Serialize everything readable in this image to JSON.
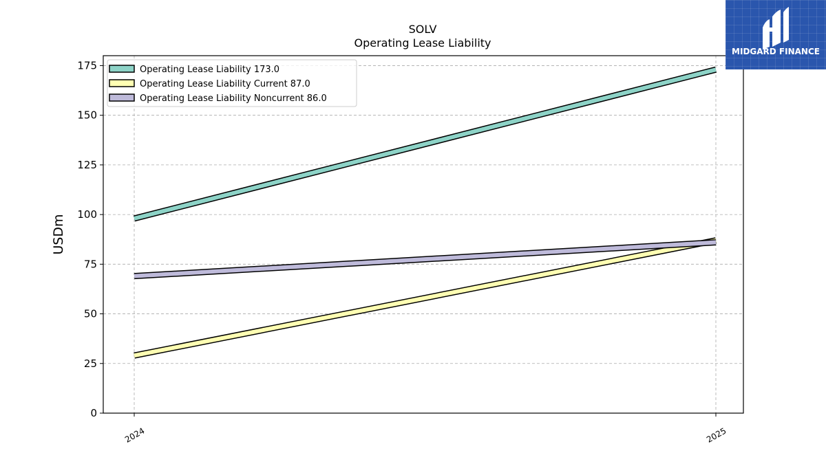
{
  "chart_data": {
    "type": "line",
    "title": "SOLV",
    "subtitle": "Operating Lease Liability",
    "xlabel": "",
    "ylabel": "USDm",
    "categories": [
      "2024",
      "2025"
    ],
    "ylim": [
      0,
      180
    ],
    "yticks": [
      0,
      25,
      50,
      75,
      100,
      125,
      150,
      175
    ],
    "grid": true,
    "legend_position": "top-left",
    "series": [
      {
        "name": "Operating Lease Liability",
        "legend_label": "Operating Lease Liability  173.0",
        "values": [
          98.0,
          173.0
        ],
        "color": "#8dd3c7"
      },
      {
        "name": "Operating Lease Liability Current",
        "legend_label": "Operating Lease Liability Current  87.0",
        "values": [
          29.0,
          87.0
        ],
        "color": "#ffffb3"
      },
      {
        "name": "Operating Lease Liability Noncurrent",
        "legend_label": "Operating Lease Liability Noncurrent  86.0",
        "values": [
          69.0,
          86.0
        ],
        "color": "#bebada"
      }
    ]
  },
  "logo": {
    "text": "MIDGARD FINANCE",
    "background": "#2a56ad"
  }
}
